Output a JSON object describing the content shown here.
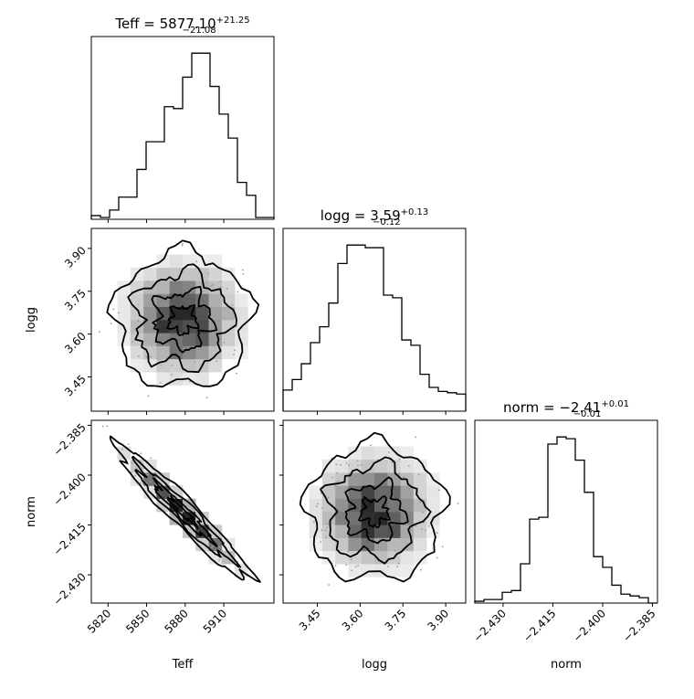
{
  "chart_data": {
    "type": "corner",
    "parameters": [
      {
        "name": "Teff",
        "label": "Teff",
        "title_prefix": "Teff = ",
        "median": "5877.10",
        "plus": "+21.25",
        "minus": "−21.08",
        "range": [
          5807,
          5949
        ],
        "ticks": [
          "5820",
          "5850",
          "5880",
          "5910"
        ],
        "tick_values": [
          5820,
          5850,
          5880,
          5910
        ]
      },
      {
        "name": "logg",
        "label": "logg",
        "title_prefix": "logg = ",
        "median": "3.59",
        "plus": "+0.13",
        "minus": "−0.12",
        "range": [
          3.33,
          3.97
        ],
        "ticks": [
          "3.45",
          "3.60",
          "3.75",
          "3.90"
        ],
        "tick_values": [
          3.45,
          3.6,
          3.75,
          3.9
        ]
      },
      {
        "name": "norm",
        "label": "norm",
        "title_prefix": "norm = ",
        "median": "−2.41",
        "plus": "+0.01",
        "minus": "−0.01",
        "range": [
          -2.4385,
          -2.3835
        ],
        "ticks": [
          "−2.430",
          "−2.415",
          "−2.400",
          "−2.385"
        ],
        "tick_values": [
          -2.43,
          -2.415,
          -2.4,
          -2.385
        ]
      }
    ],
    "y_tick_labels": {
      "logg": [
        "3.45",
        "3.60",
        "3.75",
        "3.90"
      ],
      "norm": [
        "−2.385",
        "−2.400",
        "−2.415",
        "−2.430"
      ]
    },
    "histograms": {
      "Teff": {
        "bins": 20,
        "counts": [
          2,
          1,
          5,
          12,
          12,
          27,
          42,
          42,
          61,
          60,
          77,
          90,
          90,
          72,
          57,
          44,
          20,
          13,
          1,
          1
        ]
      },
      "logg": {
        "bins": 20,
        "counts": [
          16,
          24,
          36,
          52,
          64,
          82,
          112,
          126,
          126,
          124,
          124,
          88,
          86,
          54,
          50,
          28,
          18,
          15,
          14,
          13
        ]
      },
      "norm": {
        "bins": 20,
        "counts": [
          1,
          2,
          2,
          6,
          7,
          22,
          47,
          48,
          89,
          93,
          92,
          80,
          62,
          26,
          20,
          10,
          5,
          4,
          3,
          0
        ]
      }
    },
    "pairs": [
      {
        "x": "Teff",
        "y": "logg",
        "correlation": 0.0
      },
      {
        "x": "Teff",
        "y": "norm",
        "correlation": -0.96
      },
      {
        "x": "logg",
        "y": "norm",
        "correlation": 0.0
      }
    ],
    "grid": false,
    "legend": "none"
  }
}
